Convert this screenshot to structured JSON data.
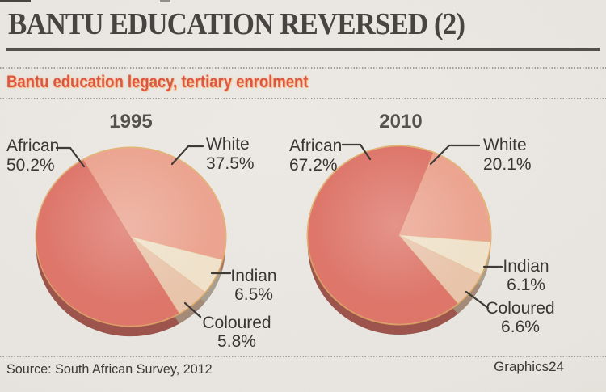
{
  "page": {
    "headline": "BANTU EDUCATION REVERSED (2)",
    "subtitle": "Bantu education legacy, tertiary enrolment",
    "source": "Source: South African Survey, 2012",
    "credit": "Graphics24"
  },
  "colors": {
    "paper": "#eae7e2",
    "headline_text": "#45413e",
    "subtitle_accent": "#df5340",
    "label_text": "#393633",
    "leader_line": "#3a3734",
    "gold_rim": "#e2a95f",
    "african_slice": "#df7569",
    "white_slice": "#eda490",
    "indian_slice": "#f1e3cb",
    "coloured_slice": "#eac5ab"
  },
  "chart_data": [
    {
      "type": "pie",
      "title": "1995",
      "unit": "percent",
      "start_angle_deg": 330,
      "order_clockwise": [
        "White",
        "Indian",
        "Coloured",
        "African"
      ],
      "slices": [
        {
          "label": "White",
          "pct": 37.5,
          "display": "37.5%",
          "color": "#eda490"
        },
        {
          "label": "Indian",
          "pct": 6.5,
          "display": "6.5%",
          "color": "#f1e3cb"
        },
        {
          "label": "Coloured",
          "pct": 5.8,
          "display": "5.8%",
          "color": "#eac5ab"
        },
        {
          "label": "African",
          "pct": 50.2,
          "display": "50.2%",
          "color": "#df7569"
        }
      ]
    },
    {
      "type": "pie",
      "title": "2010",
      "unit": "percent",
      "start_angle_deg": 22,
      "order_clockwise": [
        "White",
        "Indian",
        "Coloured",
        "African"
      ],
      "slices": [
        {
          "label": "White",
          "pct": 20.1,
          "display": "20.1%",
          "color": "#eda490"
        },
        {
          "label": "Indian",
          "pct": 6.1,
          "display": "6.1%",
          "color": "#f1e3cb"
        },
        {
          "label": "Coloured",
          "pct": 6.6,
          "display": "6.6%",
          "color": "#eac5ab"
        },
        {
          "label": "African",
          "pct": 67.2,
          "display": "67.2%",
          "color": "#df7569"
        }
      ]
    }
  ]
}
